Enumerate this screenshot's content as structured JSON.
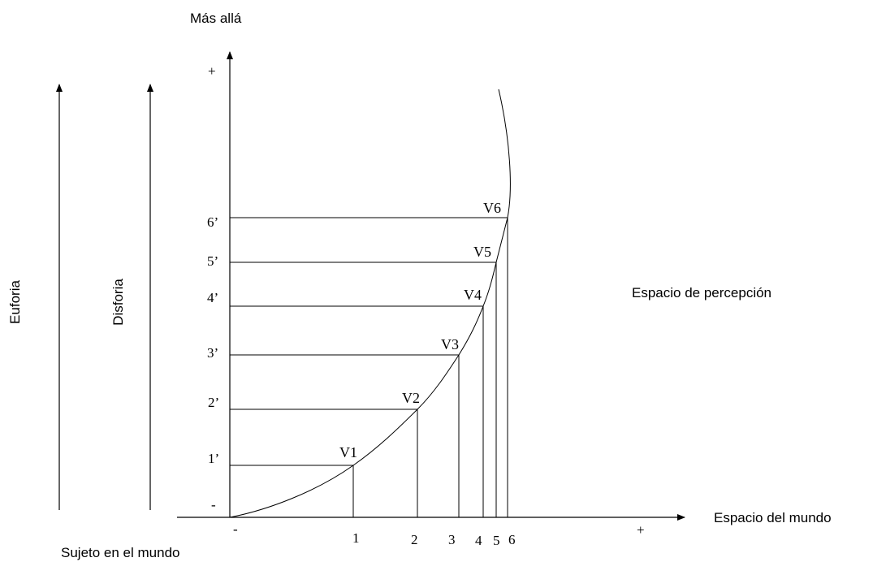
{
  "labels": {
    "top_axis": "Más allá",
    "right_axis": "Espacio del mundo",
    "origin": "Sujeto en el mundo",
    "perception": "Espacio de percepción",
    "euforia": "Euforia",
    "disforia": "Disforia",
    "y_plus": "+",
    "y_minus": "-",
    "x_minus": "-",
    "x_plus": "+"
  },
  "points": [
    {
      "label": "V1",
      "x_tick": "1",
      "y_tick": "1’"
    },
    {
      "label": "V2",
      "x_tick": "2",
      "y_tick": "2’"
    },
    {
      "label": "V3",
      "x_tick": "3",
      "y_tick": "3’"
    },
    {
      "label": "V4",
      "x_tick": "4",
      "y_tick": "4’"
    },
    {
      "label": "V5",
      "x_tick": "5",
      "y_tick": "5’"
    },
    {
      "label": "V6",
      "x_tick": "6",
      "y_tick": "6’"
    }
  ]
}
